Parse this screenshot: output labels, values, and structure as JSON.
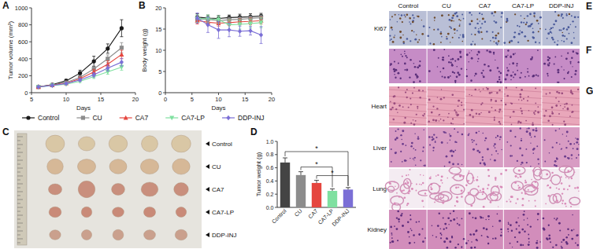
{
  "panel_letters": [
    "A",
    "B",
    "C",
    "D",
    "E",
    "F",
    "G"
  ],
  "chart_data": [
    {
      "type": "line",
      "x_label": "Days",
      "y_label": "Tumor volume (mm³)",
      "x": [
        6,
        8,
        10,
        12,
        14,
        16,
        18
      ],
      "xlim": [
        5,
        20
      ],
      "xticks": [
        5,
        10,
        15,
        20
      ],
      "ylim": [
        0,
        1000
      ],
      "yticks": [
        0,
        200,
        400,
        600,
        800,
        1000
      ],
      "legend": "bottom",
      "series": [
        {
          "name": "Control",
          "color": "#1a1a1a",
          "marker": "circle",
          "values": [
            70,
            95,
            140,
            230,
            370,
            520,
            760
          ],
          "errors": [
            8,
            10,
            18,
            35,
            60,
            55,
            100
          ]
        },
        {
          "name": "CU",
          "color": "#8c8c8c",
          "marker": "square",
          "values": [
            68,
            90,
            120,
            180,
            280,
            400,
            530
          ],
          "errors": [
            6,
            8,
            12,
            20,
            35,
            45,
            60
          ]
        },
        {
          "name": "CA7",
          "color": "#e5463f",
          "marker": "triangle",
          "values": [
            69,
            88,
            112,
            165,
            245,
            335,
            450
          ],
          "errors": [
            6,
            8,
            10,
            18,
            30,
            40,
            50
          ]
        },
        {
          "name": "CA7-LP",
          "color": "#7fe0a0",
          "marker": "triangle-down",
          "values": [
            67,
            84,
            100,
            135,
            190,
            245,
            300
          ],
          "errors": [
            5,
            7,
            9,
            15,
            22,
            28,
            35
          ]
        },
        {
          "name": "DDP-INJ",
          "color": "#7b6fd6",
          "marker": "diamond",
          "values": [
            68,
            85,
            108,
            150,
            210,
            290,
            360
          ],
          "errors": [
            6,
            8,
            10,
            16,
            25,
            35,
            45
          ]
        }
      ]
    },
    {
      "type": "line",
      "x_label": "Days",
      "y_label": "Body weight (g)",
      "x": [
        6,
        8,
        10,
        12,
        14,
        16,
        18
      ],
      "xlim": [
        0,
        20
      ],
      "xticks": [
        0,
        5,
        10,
        15,
        20
      ],
      "ylim": [
        0,
        20
      ],
      "yticks": [
        0,
        5,
        10,
        15,
        20
      ],
      "series": [
        {
          "color": "#1a1a1a",
          "marker": "circle",
          "values": [
            17.8,
            17.6,
            17.5,
            17.7,
            17.8,
            17.9,
            18.1
          ],
          "errors": [
            0.8,
            0.7,
            0.7,
            0.6,
            0.7,
            0.7,
            0.6
          ]
        },
        {
          "color": "#8c8c8c",
          "marker": "square",
          "values": [
            17.4,
            17.3,
            17.0,
            17.2,
            17.3,
            17.5,
            17.7
          ],
          "errors": [
            0.7,
            0.6,
            0.6,
            0.6,
            0.6,
            0.6,
            0.6
          ]
        },
        {
          "color": "#e5463f",
          "marker": "triangle",
          "values": [
            17.0,
            16.6,
            16.4,
            16.5,
            16.7,
            16.8,
            17.0
          ],
          "errors": [
            0.8,
            0.8,
            0.7,
            0.7,
            0.7,
            0.8,
            0.8
          ]
        },
        {
          "color": "#7fe0a0",
          "marker": "triangle-down",
          "values": [
            17.5,
            17.4,
            17.2,
            16.0,
            16.1,
            16.3,
            16.5
          ],
          "errors": [
            0.9,
            0.9,
            0.9,
            1.2,
            1.1,
            1.1,
            1.2
          ]
        },
        {
          "color": "#7b6fd6",
          "marker": "diamond",
          "values": [
            17.6,
            16.0,
            14.8,
            14.8,
            14.5,
            14.6,
            13.6
          ],
          "errors": [
            1.2,
            1.8,
            2.0,
            1.6,
            1.2,
            1.0,
            2.0
          ]
        }
      ]
    },
    {
      "type": "bar",
      "y_label": "Tumor weight (g)",
      "categories": [
        "Control",
        "CU",
        "CA7",
        "CA7-LP",
        "DDP-INJ"
      ],
      "values": [
        0.68,
        0.49,
        0.37,
        0.25,
        0.27
      ],
      "errors": [
        0.07,
        0.05,
        0.04,
        0.03,
        0.03
      ],
      "colors": [
        "#444444",
        "#8c8c8c",
        "#e5463f",
        "#7fe0a0",
        "#7b6fd6"
      ],
      "ylim": [
        0,
        1.0
      ],
      "yticks": [
        {
          "value": 0,
          "label": "0.0"
        },
        {
          "value": 0.2,
          "label": "0.2"
        },
        {
          "value": 0.4,
          "label": "0.4"
        },
        {
          "value": 0.6,
          "label": "0.6"
        },
        {
          "value": 0.8,
          "label": "0.8"
        },
        {
          "value": 1.0,
          "label": "1.0"
        }
      ],
      "annotations": [
        {
          "text": "*",
          "from": 0,
          "to": 4
        },
        {
          "text": "*",
          "from": 1,
          "to": 3
        },
        {
          "text": "*",
          "from": 2,
          "to": 4
        }
      ]
    }
  ],
  "photo": {
    "rows": [
      "Control",
      "CU",
      "CA7",
      "CA7-LP",
      "DDP-INJ"
    ]
  },
  "histology": {
    "columns": [
      "Control",
      "CU",
      "CA7",
      "CA7-LP",
      "DDP-INJ"
    ],
    "rows": [
      "Ki67",
      null,
      "Heart",
      "Liver",
      "Lung",
      "Kidney"
    ]
  }
}
